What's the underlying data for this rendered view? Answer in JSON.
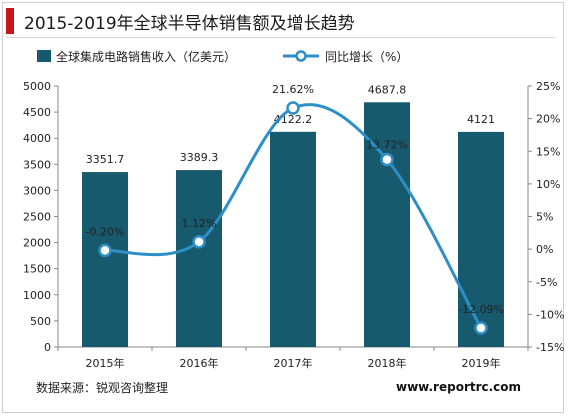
{
  "header": {
    "title": "2015-2019年全球半导体销售额及增长趋势"
  },
  "footer": {
    "source": "数据来源：锐观咨询整理",
    "site": "www.reportrc.com"
  },
  "chart_data": {
    "type": "bar",
    "title": "2015-2019年全球半导体销售额及增长趋势",
    "categories": [
      "2015年",
      "2016年",
      "2017年",
      "2018年",
      "2019年"
    ],
    "series": [
      {
        "name": "全球集成电路销售收入（亿美元）",
        "type": "bar",
        "axis": "left",
        "color": "#185a6d",
        "values": [
          3351.7,
          3389.3,
          4122.2,
          4687.8,
          4121
        ],
        "labels": [
          "3351.7",
          "3389.3",
          "4122.2",
          "4687.8",
          "4121"
        ]
      },
      {
        "name": "同比增长（%）",
        "type": "line",
        "axis": "right",
        "color": "#2e8ec7",
        "values": [
          -0.2,
          1.12,
          21.62,
          13.72,
          -12.09
        ],
        "labels": [
          "-0.20%",
          "1.12%",
          "21.62%",
          "13.72%",
          "-12.09%"
        ]
      }
    ],
    "y_left": {
      "ylim": [
        0,
        5000
      ],
      "ticks": [
        0,
        500,
        1000,
        1500,
        2000,
        2500,
        3000,
        3500,
        4000,
        4500,
        5000
      ],
      "tick_labels": [
        "0",
        "500",
        "1000",
        "1500",
        "2000",
        "2500",
        "3000",
        "3500",
        "4000",
        "4500",
        "5000"
      ]
    },
    "y_right": {
      "ylim": [
        -15,
        25
      ],
      "ticks": [
        -15,
        -10,
        -5,
        0,
        5,
        10,
        15,
        20,
        25
      ],
      "tick_labels": [
        "-15%",
        "-10%",
        "-5%",
        "0%",
        "5%",
        "10%",
        "15%",
        "20%",
        "25%"
      ]
    },
    "legend": "top-left",
    "grid": false
  }
}
